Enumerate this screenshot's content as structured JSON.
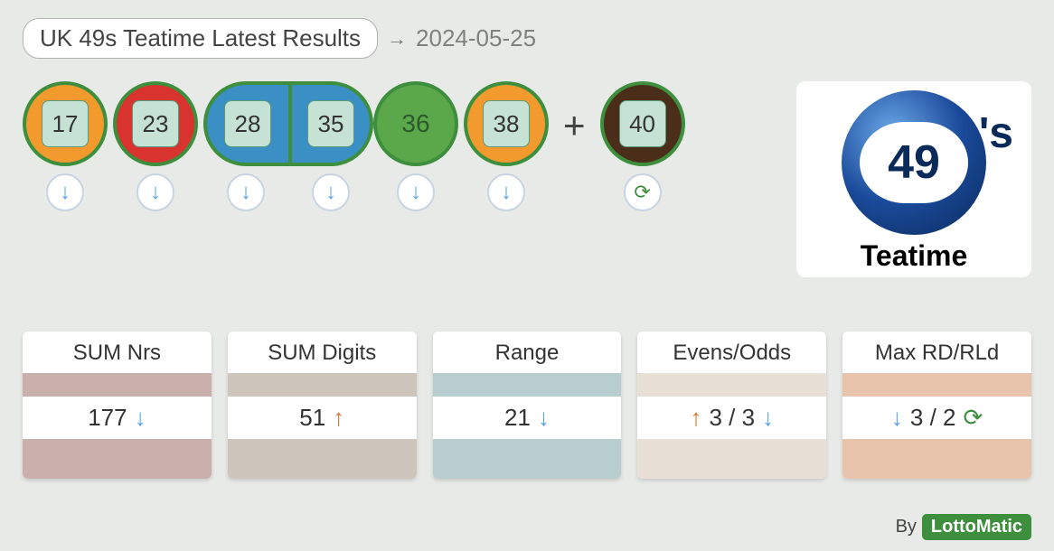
{
  "header": {
    "title": "UK 49s Teatime Latest Results",
    "date": "2024-05-25"
  },
  "balls": [
    {
      "n": "17",
      "bg": "#f29a2e",
      "trend": "down",
      "inner_style": "box"
    },
    {
      "n": "23",
      "bg": "#d8332e",
      "trend": "down",
      "inner_style": "box"
    },
    {
      "n": "28",
      "bg": "#3a8fc4",
      "trend": "down",
      "inner_style": "box",
      "pair_left": true
    },
    {
      "n": "35",
      "bg": "#3a8fc4",
      "trend": "down",
      "inner_style": "box",
      "pair_right": true
    },
    {
      "n": "36",
      "bg": "#5aa84a",
      "trend": "down",
      "inner_style": "plain"
    },
    {
      "n": "38",
      "bg": "#f29a2e",
      "trend": "down",
      "inner_style": "box"
    }
  ],
  "bonus": {
    "n": "40",
    "bg": "#4a2e1a",
    "trend": "repeat",
    "inner_style": "box"
  },
  "logo": {
    "number": "49",
    "suffix": "'s",
    "caption": "Teatime"
  },
  "stats": [
    {
      "title": "SUM Nrs",
      "value": "177",
      "left_icon": "",
      "right_icon": "down",
      "bar_color": "#c9b0ac"
    },
    {
      "title": "SUM Digits",
      "value": "51",
      "left_icon": "",
      "right_icon": "up",
      "bar_color": "#cdc5bc"
    },
    {
      "title": "Range",
      "value": "21",
      "left_icon": "",
      "right_icon": "down",
      "bar_color": "#b8cdcd"
    },
    {
      "title": "Evens/Odds",
      "value": "3 / 3",
      "left_icon": "up",
      "right_icon": "down",
      "bar_color": "#e8e0d6"
    },
    {
      "title": "Max RD/RLd",
      "value": "3 / 2",
      "left_icon": "down",
      "right_icon": "repeat",
      "bar_color": "#e8c4ac"
    }
  ],
  "footer": {
    "by": "By",
    "brand": "LottoMatic"
  },
  "icons": {
    "down": "↓",
    "up": "↑",
    "repeat": "⟳",
    "arrow_right": "→"
  },
  "colors": {
    "trend_down": "#5a9fe8",
    "trend_up": "#d8732e",
    "trend_repeat": "#3d8f3d"
  }
}
